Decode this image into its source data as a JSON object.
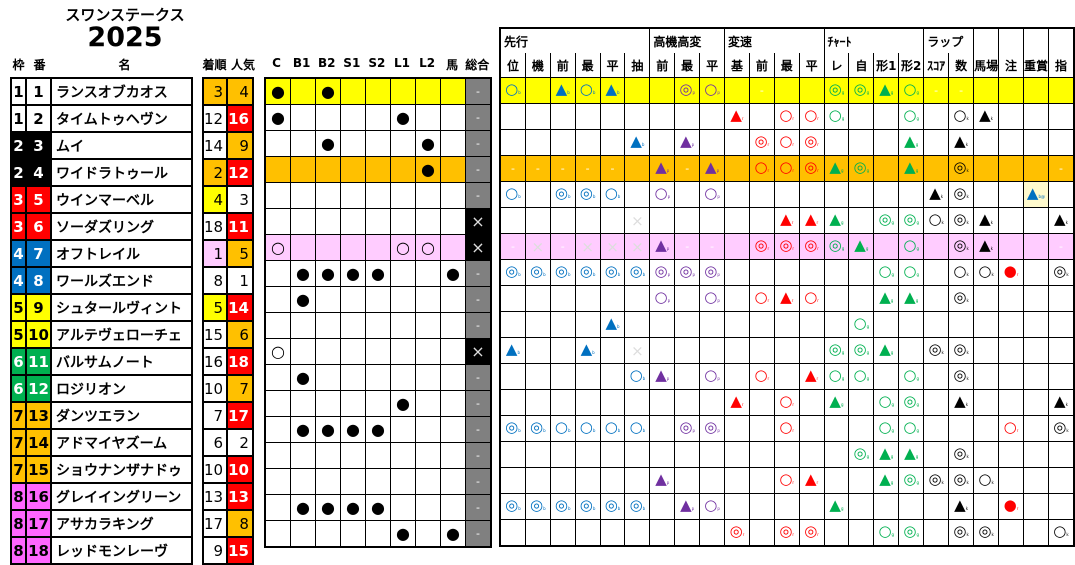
{
  "title": "スワンステークス",
  "year": "2025",
  "headers": {
    "waku": "枠",
    "ban": "番",
    "name": "名",
    "chaku": "着順",
    "ninki": "人気",
    "marks": [
      "C",
      "B1",
      "B2",
      "S1",
      "S2",
      "L1",
      "L2",
      "馬",
      "総合"
    ],
    "groups": [
      {
        "label": "先行",
        "span": 6
      },
      {
        "label": "高機高変",
        "span": 3
      },
      {
        "label": "変速",
        "span": 4
      },
      {
        "label": "ﾁｬｰﾄ",
        "span": 4
      },
      {
        "label": "ラップ",
        "span": 2
      },
      {
        "label": "",
        "span": 1
      },
      {
        "label": "",
        "span": 1
      },
      {
        "label": "",
        "span": 1
      },
      {
        "label": "",
        "span": 1
      }
    ],
    "sub": [
      "位",
      "機",
      "前",
      "最",
      "平",
      "抽",
      "前",
      "最",
      "平",
      "基",
      "前",
      "最",
      "平",
      "レ",
      "自",
      "形1",
      "形2",
      "ｽｺｱ",
      "数",
      "馬場",
      "注",
      "重賞",
      "指"
    ]
  },
  "colors": {
    "waku": {
      "1": "#ffffff",
      "2": "#000000",
      "3": "#ff0000",
      "4": "#0070c0",
      "5": "#ffff00",
      "6": "#00b050",
      "7": "#ffc000",
      "8": "#ff66ff"
    },
    "highlight": {
      "yellow": "#ffff00",
      "orange": "#ffc000",
      "pink": "#ffccff",
      "lightyellow": "#fffacd"
    },
    "ninki_mid": "#ffc000",
    "ninki_low": "#ff0000",
    "symbol": {
      "b": "#0070c0",
      "p": "#7030a0",
      "r": "#ff0000",
      "g": "#00b050",
      "k": "#000000"
    }
  },
  "rows": [
    {
      "waku": "1",
      "ban": "1",
      "name": "ランスオブカオス",
      "chaku": "3",
      "ninki": "4",
      "highlight": "yellow",
      "marks": [
        "●",
        "",
        "●",
        "",
        "",
        "",
        "",
        ""
      ],
      "total": "-",
      "cells": [
        "○b",
        "",
        "▲b",
        "○b",
        "▲b",
        "",
        "",
        "◎p",
        "○p",
        "",
        "-",
        "",
        "",
        "◎g",
        "◎g",
        "▲g",
        "○g",
        "-",
        "-",
        "",
        "",
        "",
        ""
      ]
    },
    {
      "waku": "1",
      "ban": "2",
      "name": "タイムトゥヘヴン",
      "chaku": "12",
      "ninki": "16",
      "highlight": "",
      "marks": [
        "●",
        "",
        "",
        "",
        "",
        "●",
        "",
        ""
      ],
      "total": "-",
      "cells": [
        "-",
        "-",
        "-",
        "-",
        "-",
        "-",
        "-",
        "-",
        "-",
        "▲r",
        "-",
        "○r",
        "○r",
        "○g",
        "",
        "",
        "○g",
        "",
        "○k",
        "▲k",
        "",
        "",
        "-"
      ]
    },
    {
      "waku": "2",
      "ban": "3",
      "name": "ムイ",
      "chaku": "14",
      "ninki": "9",
      "highlight": "",
      "marks": [
        "",
        "",
        "●",
        "",
        "",
        "",
        "●",
        ""
      ],
      "total": "-",
      "cells": [
        "-",
        "-",
        "-",
        "-",
        "-",
        "▲b",
        "",
        "▲p",
        "",
        "",
        "◎r",
        "○r",
        "◎r",
        "-",
        "",
        "",
        "▲g",
        "-",
        "▲k",
        "",
        "",
        "",
        "-"
      ]
    },
    {
      "waku": "2",
      "ban": "4",
      "name": "ワイドラトゥール",
      "chaku": "2",
      "ninki": "12",
      "highlight": "orange",
      "marks": [
        "",
        "",
        "",
        "",
        "",
        "",
        "●",
        ""
      ],
      "total": "-",
      "cells": [
        "-",
        "-",
        "-",
        "-",
        "-",
        "",
        "▲p",
        "-",
        "▲p",
        "",
        "○r",
        "○r",
        "◎r",
        "▲g",
        "◎g",
        "",
        "▲g",
        "",
        "◎k",
        "",
        "",
        "",
        "-"
      ]
    },
    {
      "waku": "3",
      "ban": "5",
      "name": "ウインマーベル",
      "chaku": "4",
      "ninki": "3",
      "highlight": "",
      "marks": [
        "",
        "",
        "",
        "",
        "",
        "",
        "",
        ""
      ],
      "total": "-",
      "cells": [
        "○b",
        "",
        "◎b",
        "◎b",
        "○b",
        "",
        "○p",
        "-",
        "○p",
        "-",
        "-",
        "-",
        "-",
        "-",
        "-",
        "",
        "",
        "▲k",
        "◎k",
        "",
        "",
        "▲b@",
        "-"
      ]
    },
    {
      "waku": "3",
      "ban": "6",
      "name": "ソーダズリング",
      "chaku": "18",
      "ninki": "11",
      "highlight": "",
      "marks": [
        "",
        "",
        "",
        "",
        "",
        "",
        "",
        ""
      ],
      "total": "×",
      "cells": [
        "",
        "-",
        "-",
        "-",
        "-",
        "×",
        "-",
        "-",
        "-",
        "",
        "-",
        "▲r",
        "▲r",
        "▲g",
        "",
        "◎g",
        "◎g",
        "○k",
        "◎k",
        "▲k",
        "",
        "",
        "▲k"
      ]
    },
    {
      "waku": "4",
      "ban": "7",
      "name": "オフトレイル",
      "chaku": "1",
      "ninki": "5",
      "highlight": "pink",
      "marks": [
        "○",
        "",
        "",
        "",
        "",
        "○",
        "○",
        ""
      ],
      "total": "×",
      "cells": [
        "-",
        "×",
        "-",
        "×",
        "×",
        "×",
        "▲p",
        "-",
        "-",
        "",
        "◎r",
        "◎r",
        "◎r",
        "◎g",
        "▲g",
        "",
        "○g",
        "",
        "◎k",
        "▲k",
        "",
        "",
        "-"
      ]
    },
    {
      "waku": "4",
      "ban": "8",
      "name": "ワールズエンド",
      "chaku": "8",
      "ninki": "1",
      "highlight": "",
      "marks": [
        "",
        "●",
        "●",
        "●",
        "●",
        "",
        "",
        "●"
      ],
      "total": "-",
      "cells": [
        "◎b",
        "◎b",
        "◎b",
        "◎b",
        "◎b",
        "◎b",
        "◎p",
        "◎p",
        "◎p",
        "",
        "-",
        "",
        "",
        "-",
        "",
        "○g",
        "○g",
        "",
        "○k",
        "○k",
        "●r",
        "",
        "◎k"
      ]
    },
    {
      "waku": "5",
      "ban": "9",
      "name": "シュタールヴィント",
      "chaku": "5",
      "ninki": "14",
      "highlight": "",
      "marks": [
        "",
        "●",
        "",
        "",
        "",
        "",
        "",
        ""
      ],
      "total": "-",
      "cells": [
        "-",
        "",
        "-",
        "-",
        "-",
        "",
        "○p",
        "-",
        "○p",
        "",
        "○r",
        "▲r",
        "○r",
        "",
        "",
        "▲g",
        "▲g",
        "",
        "◎k",
        "",
        "",
        "",
        "-"
      ]
    },
    {
      "waku": "5",
      "ban": "10",
      "name": "アルテヴェローチェ",
      "chaku": "15",
      "ninki": "6",
      "highlight": "",
      "marks": [
        "",
        "",
        "",
        "",
        "",
        "",
        "",
        ""
      ],
      "total": "-",
      "cells": [
        "",
        "",
        "-",
        "-",
        "▲b",
        "",
        "-",
        "-",
        "-",
        "",
        "-",
        "-",
        "-",
        "",
        "○g",
        "",
        "",
        "-",
        "-",
        "-",
        "",
        "",
        "-"
      ]
    },
    {
      "waku": "6",
      "ban": "11",
      "name": "バルサムノート",
      "chaku": "16",
      "ninki": "18",
      "highlight": "",
      "marks": [
        "○",
        "",
        "",
        "",
        "",
        "",
        "",
        ""
      ],
      "total": "×",
      "cells": [
        "▲b",
        "-",
        "-",
        "▲b",
        "-",
        "×",
        "-",
        "-",
        "-",
        "-",
        "-",
        "-",
        "-",
        "◎g",
        "◎g",
        "▲g",
        "",
        "◎k",
        "◎k",
        "-",
        "",
        "",
        "-"
      ]
    },
    {
      "waku": "6",
      "ban": "12",
      "name": "ロジリオン",
      "chaku": "10",
      "ninki": "7",
      "highlight": "",
      "marks": [
        "",
        "●",
        "",
        "",
        "",
        "",
        "",
        ""
      ],
      "total": "-",
      "cells": [
        "",
        "",
        "-",
        "-",
        "",
        "○b",
        "▲p",
        "",
        "○p",
        "",
        "○r",
        "",
        "▲r",
        "○g",
        "○g",
        "",
        "○g",
        "-",
        "◎k",
        "",
        "",
        "",
        ""
      ]
    },
    {
      "waku": "7",
      "ban": "13",
      "name": "ダンツエラン",
      "chaku": "7",
      "ninki": "17",
      "highlight": "",
      "marks": [
        "",
        "",
        "",
        "",
        "",
        "●",
        "",
        ""
      ],
      "total": "-",
      "cells": [
        "-",
        "-",
        "-",
        "-",
        "-",
        "",
        "-",
        "-",
        "-",
        "▲r",
        "-",
        "○r",
        "-",
        "▲g",
        "",
        "○g",
        "◎g",
        "-",
        "▲k",
        "",
        "",
        "",
        "▲k"
      ]
    },
    {
      "waku": "7",
      "ban": "14",
      "name": "アドマイヤズーム",
      "chaku": "6",
      "ninki": "2",
      "highlight": "",
      "marks": [
        "",
        "●",
        "●",
        "●",
        "●",
        "",
        "",
        ""
      ],
      "total": "-",
      "cells": [
        "◎b",
        "◎b",
        "○b",
        "○b",
        "○b",
        "○b",
        "-",
        "◎p",
        "◎p",
        "",
        "-",
        "○r",
        "",
        "-",
        "",
        "○g",
        "○g",
        "-",
        "-",
        "",
        "○r",
        "",
        "◎k"
      ]
    },
    {
      "waku": "7",
      "ban": "15",
      "name": "ショウナンザナドゥ",
      "chaku": "10",
      "ninki": "10",
      "highlight": "",
      "marks": [
        "",
        "",
        "",
        "",
        "",
        "",
        "",
        ""
      ],
      "total": "-",
      "cells": [
        "",
        "",
        "-",
        "-",
        "-",
        "",
        "",
        "-",
        "-",
        "",
        "",
        "-",
        "-",
        "",
        "◎g",
        "▲g",
        "▲g",
        "",
        "◎k",
        "",
        "",
        "",
        "-"
      ]
    },
    {
      "waku": "8",
      "ban": "16",
      "name": "グレイイングリーン",
      "chaku": "13",
      "ninki": "13",
      "highlight": "",
      "marks": [
        "",
        "",
        "",
        "",
        "",
        "",
        "",
        ""
      ],
      "total": "-",
      "cells": [
        "-",
        "-",
        "",
        "-",
        "-",
        "",
        "▲p",
        "-",
        "-",
        "",
        "",
        "○r",
        "▲r",
        "",
        "",
        "▲g",
        "◎g",
        "◎k",
        "◎k",
        "○k",
        "",
        "",
        ""
      ]
    },
    {
      "waku": "8",
      "ban": "17",
      "name": "アサカラキング",
      "chaku": "17",
      "ninki": "8",
      "highlight": "",
      "marks": [
        "",
        "●",
        "●",
        "●",
        "●",
        "",
        "",
        ""
      ],
      "total": "-",
      "cells": [
        "◎b",
        "◎b",
        "◎b",
        "◎b",
        "◎b",
        "◎b",
        "",
        "▲p",
        "○p",
        "-",
        "-",
        "-",
        "-",
        "▲g",
        "-",
        "",
        "",
        "",
        "▲k",
        "-",
        "●r",
        "",
        "-"
      ]
    },
    {
      "waku": "8",
      "ban": "18",
      "name": "レッドモンレーヴ",
      "chaku": "9",
      "ninki": "15",
      "highlight": "",
      "marks": [
        "",
        "",
        "",
        "",
        "",
        "●",
        "",
        "●"
      ],
      "total": "-",
      "cells": [
        "-",
        "-",
        "",
        "-",
        "-",
        "",
        "-",
        "-",
        "-",
        "◎r",
        "-",
        "◎r",
        "◎r",
        "",
        "",
        "○g",
        "◎g",
        "",
        "◎k",
        "◎k",
        "",
        "",
        "○k"
      ]
    }
  ]
}
